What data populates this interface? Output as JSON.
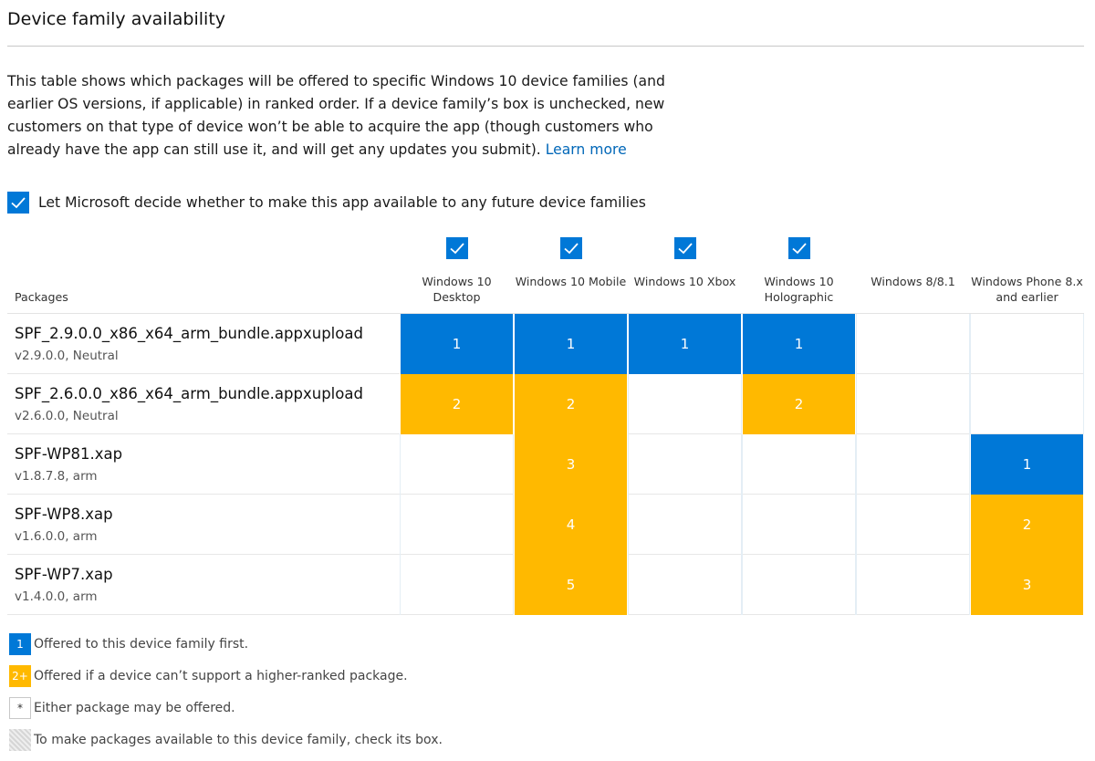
{
  "section": {
    "title": "Device family availability",
    "intro": "This table shows which packages will be offered to specific Windows 10 device families (and earlier OS versions, if applicable) in ranked order. If a device family’s box is unchecked, new customers on that type of device won’t be able to acquire the app (though customers who already have the app can still use it, and will get any updates you submit).",
    "learn_more": "Learn more"
  },
  "auto_decide": {
    "checked": true,
    "label": "Let Microsoft decide whether to make this app available to any future device families"
  },
  "table": {
    "packages_header": "Packages",
    "columns": [
      {
        "label": "Windows 10 Desktop",
        "checked": true
      },
      {
        "label": "Windows 10 Mobile",
        "checked": true
      },
      {
        "label": "Windows 10 Xbox",
        "checked": true
      },
      {
        "label": "Windows 10 Holographic",
        "checked": true
      },
      {
        "label": "Windows 8/8.1",
        "checked": false
      },
      {
        "label": "Windows Phone 8.x and earlier",
        "checked": false
      }
    ],
    "rows": [
      {
        "name": "SPF_2.9.0.0_x86_x64_arm_bundle.appxupload",
        "meta": "v2.9.0.0, Neutral",
        "cells": [
          "1",
          "1",
          "1",
          "1",
          "",
          ""
        ]
      },
      {
        "name": "SPF_2.6.0.0_x86_x64_arm_bundle.appxupload",
        "meta": "v2.6.0.0, Neutral",
        "cells": [
          "2",
          "2",
          "",
          "2",
          "",
          ""
        ]
      },
      {
        "name": "SPF-WP81.xap",
        "meta": "v1.8.7.8, arm",
        "cells": [
          "",
          "3",
          "",
          "",
          "",
          "1"
        ]
      },
      {
        "name": "SPF-WP8.xap",
        "meta": "v1.6.0.0, arm",
        "cells": [
          "",
          "4",
          "",
          "",
          "",
          "2"
        ]
      },
      {
        "name": "SPF-WP7.xap",
        "meta": "v1.4.0.0, arm",
        "cells": [
          "",
          "5",
          "",
          "",
          "",
          "3"
        ]
      }
    ]
  },
  "legend": [
    {
      "swatch": "1",
      "style": "blue",
      "text": "Offered to this device family first."
    },
    {
      "swatch": "2+",
      "style": "gold",
      "text": "Offered if a device can’t support a higher-ranked package."
    },
    {
      "swatch": "*",
      "style": "star",
      "text": "Either package may be offered."
    },
    {
      "swatch": "",
      "style": "hatch",
      "text": "To make packages available to this device family, check its box."
    }
  ],
  "colors": {
    "accent_blue": "#0078d7",
    "rank_gold": "#ffb900",
    "link": "#0067b8"
  }
}
